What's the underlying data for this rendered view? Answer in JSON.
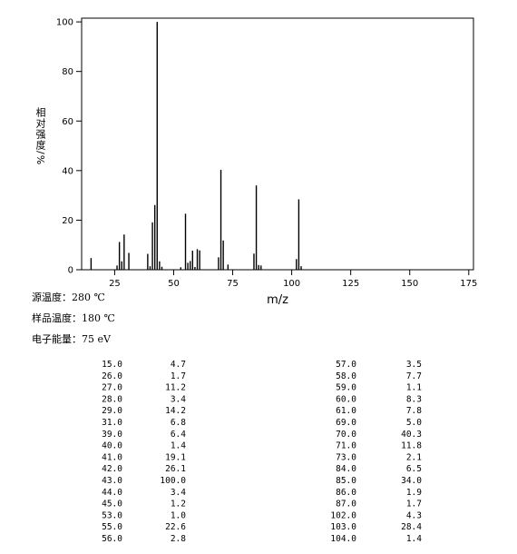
{
  "chart_data": {
    "type": "bar",
    "ylabel": "相对强度/%",
    "xlabel": "m/z",
    "x": [
      15,
      26,
      27,
      28,
      29,
      31,
      39,
      40,
      41,
      42,
      43,
      44,
      45,
      53,
      55,
      56,
      57,
      58,
      59,
      60,
      61,
      69,
      70,
      71,
      73,
      84,
      85,
      86,
      87,
      102,
      103,
      104
    ],
    "values": [
      4.7,
      1.7,
      11.2,
      3.4,
      14.2,
      6.8,
      6.4,
      1.4,
      19.1,
      26.1,
      100.0,
      3.4,
      1.2,
      1.0,
      22.6,
      2.8,
      3.5,
      7.7,
      1.1,
      8.3,
      7.8,
      5.0,
      40.3,
      11.8,
      2.1,
      6.5,
      34.0,
      1.9,
      1.7,
      4.3,
      28.4,
      1.4
    ],
    "color": "#000000",
    "xlim": [
      11,
      177
    ],
    "xticks": [
      25,
      50,
      75,
      100,
      125,
      150,
      175
    ],
    "ylim": [
      0,
      101.5
    ],
    "yticks": [
      0,
      20,
      40,
      60,
      80,
      100
    ]
  },
  "conditions": [
    "源温度：280 ℃",
    "样品温度：180 ℃",
    "电子能量：75 eV"
  ],
  "table": {
    "left": [
      [
        "15.0",
        "4.7"
      ],
      [
        "26.0",
        "1.7"
      ],
      [
        "27.0",
        "11.2"
      ],
      [
        "28.0",
        "3.4"
      ],
      [
        "29.0",
        "14.2"
      ],
      [
        "31.0",
        "6.8"
      ],
      [
        "39.0",
        "6.4"
      ],
      [
        "40.0",
        "1.4"
      ],
      [
        "41.0",
        "19.1"
      ],
      [
        "42.0",
        "26.1"
      ],
      [
        "43.0",
        "100.0"
      ],
      [
        "44.0",
        "3.4"
      ],
      [
        "45.0",
        "1.2"
      ],
      [
        "53.0",
        "1.0"
      ],
      [
        "55.0",
        "22.6"
      ],
      [
        "56.0",
        "2.8"
      ]
    ],
    "right": [
      [
        "57.0",
        "3.5"
      ],
      [
        "58.0",
        "7.7"
      ],
      [
        "59.0",
        "1.1"
      ],
      [
        "60.0",
        "8.3"
      ],
      [
        "61.0",
        "7.8"
      ],
      [
        "69.0",
        "5.0"
      ],
      [
        "70.0",
        "40.3"
      ],
      [
        "71.0",
        "11.8"
      ],
      [
        "73.0",
        "2.1"
      ],
      [
        "84.0",
        "6.5"
      ],
      [
        "85.0",
        "34.0"
      ],
      [
        "86.0",
        "1.9"
      ],
      [
        "87.0",
        "1.7"
      ],
      [
        "102.0",
        "4.3"
      ],
      [
        "103.0",
        "28.4"
      ],
      [
        "104.0",
        "1.4"
      ]
    ]
  }
}
